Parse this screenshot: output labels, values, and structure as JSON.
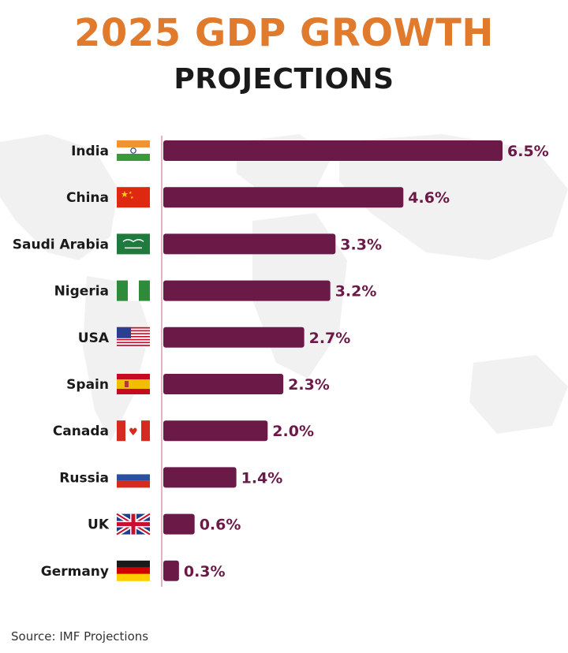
{
  "chart_data": {
    "type": "bar",
    "orientation": "horizontal",
    "title": "2025 GDP GROWTH",
    "subtitle": "PROJECTIONS",
    "categories": [
      "India",
      "China",
      "Saudi Arabia",
      "Nigeria",
      "USA",
      "Spain",
      "Canada",
      "Russia",
      "UK",
      "Germany"
    ],
    "values": [
      6.5,
      4.6,
      3.3,
      3.2,
      2.7,
      2.3,
      2.0,
      1.4,
      0.6,
      0.3
    ],
    "value_labels": [
      "6.5%",
      "4.6%",
      "3.3%",
      "3.2%",
      "2.7%",
      "2.3%",
      "2.0%",
      "1.4%",
      "0.6%",
      "0.3%"
    ],
    "flag_icons": [
      "india-flag-icon",
      "china-flag-icon",
      "saudi-arabia-flag-icon",
      "nigeria-flag-icon",
      "usa-flag-icon",
      "spain-flag-icon",
      "canada-flag-icon",
      "russia-flag-icon",
      "uk-flag-icon",
      "germany-flag-icon"
    ],
    "xlim": [
      0,
      6.5
    ],
    "xlabel": "",
    "ylabel": "",
    "bar_color": "#6b1a48",
    "grid": false
  },
  "source": "Source: IMF Projections",
  "colors": {
    "title": "#e07b2e",
    "subtitle": "#1a1a1a",
    "bar": "#6b1a48",
    "value_label": "#6b1a48",
    "category_label": "#1a1a1a",
    "axis_line": "#e3b3c4"
  }
}
